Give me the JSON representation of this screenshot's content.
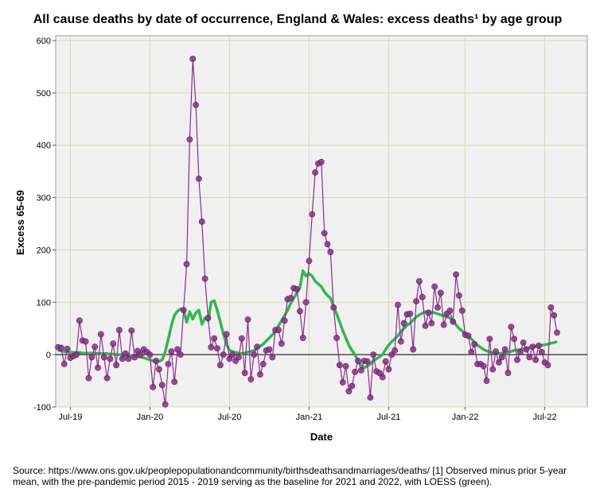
{
  "chart_data": {
    "type": "line",
    "title": "All cause deaths by date of occurrence, England & Wales: excess deaths¹ by age group",
    "x_label": "Date",
    "y_label": "Excess 65-69",
    "note": "Source: https://www.ons.gov.uk/peoplepopulationandcommunity/birthsdeathsandmarriages/deaths/  [1] Observed minus prior 5-year mean, with the pre-pandemic period 2015 - 2019 serving as the baseline for 2021 and 2022, with LOESS (green).",
    "categories": [
      null,
      null,
      null,
      null,
      "Jul-19",
      null,
      null,
      null,
      null,
      null,
      null,
      null,
      null,
      null,
      null,
      null,
      null,
      null,
      null,
      null,
      null,
      null,
      null,
      null,
      null,
      null,
      null,
      null,
      null,
      null,
      "Jan-20",
      null,
      null,
      null,
      null,
      null,
      null,
      null,
      null,
      null,
      null,
      null,
      null,
      null,
      null,
      null,
      null,
      null,
      null,
      null,
      null,
      null,
      null,
      null,
      null,
      null,
      "Jul-20",
      null,
      null,
      null,
      null,
      null,
      null,
      null,
      null,
      null,
      null,
      null,
      null,
      null,
      null,
      null,
      null,
      null,
      null,
      null,
      null,
      null,
      null,
      null,
      null,
      null,
      "Jan-21",
      null,
      null,
      null,
      null,
      null,
      null,
      null,
      null,
      null,
      null,
      null,
      null,
      null,
      null,
      null,
      null,
      null,
      null,
      null,
      null,
      null,
      null,
      null,
      null,
      null,
      "Jul-21",
      null,
      null,
      null,
      null,
      null,
      null,
      null,
      null,
      null,
      null,
      null,
      null,
      null,
      null,
      null,
      null,
      null,
      null,
      null,
      null,
      null,
      null,
      null,
      null,
      "Jan-22",
      null,
      null,
      null,
      null,
      null,
      null,
      null,
      null,
      null,
      null,
      null,
      null,
      null,
      null,
      null,
      null,
      null,
      null,
      null,
      null,
      null,
      null,
      null,
      null,
      null,
      "Jul-22",
      null,
      null,
      null,
      null
    ],
    "series": [
      {
        "color": "#8e2d8e",
        "markers": true,
        "values": [
          14,
          13,
          -18,
          11,
          -6,
          -3,
          0,
          65,
          27,
          25,
          -45,
          -5,
          15,
          -25,
          39,
          -5,
          -45,
          -8,
          21,
          -20,
          47,
          -8,
          2,
          -8,
          46,
          -5,
          7,
          0,
          10,
          5,
          0,
          -62,
          -12,
          -28,
          -58,
          -95,
          -18,
          6,
          -52,
          10,
          0,
          85,
          173,
          411,
          565,
          477,
          336,
          254,
          145,
          70,
          14,
          31,
          12,
          -20,
          0,
          39,
          -8,
          0,
          -12,
          -5,
          31,
          -35,
          67,
          -47,
          0,
          15,
          -38,
          -18,
          8,
          10,
          -5,
          47,
          47,
          21,
          65,
          106,
          108,
          127,
          125,
          83,
          32,
          100,
          179,
          268,
          348,
          365,
          368,
          232,
          211,
          196,
          90,
          32,
          -20,
          -53,
          -22,
          -70,
          -60,
          -33,
          -12,
          -30,
          -12,
          -13,
          -82,
          0,
          -32,
          -35,
          -43,
          -13,
          -28,
          0,
          8,
          95,
          25,
          60,
          77,
          78,
          10,
          102,
          140,
          110,
          55,
          80,
          60,
          130,
          90,
          118,
          57,
          78,
          84,
          63,
          153,
          113,
          84,
          38,
          36,
          5,
          20,
          -18,
          -18,
          -22,
          -50,
          30,
          -28,
          6,
          -15,
          -5,
          10,
          -35,
          53,
          30,
          -10,
          5,
          23,
          10,
          -5,
          15,
          -10,
          17,
          5,
          -15,
          -20,
          90,
          75,
          42
        ]
      },
      {
        "color": "#2fb84a",
        "markers": false,
        "values": [
          8,
          7,
          6,
          5,
          5,
          4,
          4,
          4,
          3,
          3,
          3,
          3,
          3,
          2,
          2,
          2,
          2,
          1,
          1,
          0,
          0,
          0,
          -1,
          -1,
          -2,
          -3,
          -4,
          -5,
          -6,
          -8,
          -10,
          -12,
          -13,
          -13,
          -10,
          5,
          30,
          55,
          75,
          83,
          87,
          85,
          62,
          82,
          68,
          80,
          85,
          58,
          70,
          65,
          100,
          103,
          85,
          62,
          40,
          20,
          8,
          6,
          4,
          3,
          2,
          3,
          5,
          6,
          8,
          12,
          16,
          20,
          26,
          32,
          38,
          45,
          55,
          65,
          75,
          85,
          98,
          108,
          118,
          128,
          160,
          150,
          155,
          150,
          140,
          135,
          130,
          120,
          113,
          108,
          92,
          78,
          62,
          46,
          32,
          18,
          8,
          0,
          -12,
          -20,
          -25,
          -22,
          -18,
          -12,
          -8,
          -4,
          0,
          10,
          18,
          25,
          30,
          36,
          44,
          50,
          56,
          60,
          66,
          72,
          76,
          79,
          82,
          82,
          81,
          80,
          78,
          76,
          74,
          72,
          70,
          64,
          57,
          50,
          45,
          40,
          36,
          30,
          24,
          18,
          14,
          10,
          7,
          5,
          3,
          2,
          2,
          3,
          3,
          5,
          6,
          8,
          9,
          10,
          11,
          12,
          13,
          15,
          16,
          17,
          18,
          19,
          20,
          22,
          23,
          25
        ]
      }
    ],
    "ylim": [
      -100,
      600
    ],
    "yticks": [
      -100,
      0,
      100,
      200,
      300,
      400,
      500,
      600
    ],
    "grid": true,
    "zero_line": true
  }
}
